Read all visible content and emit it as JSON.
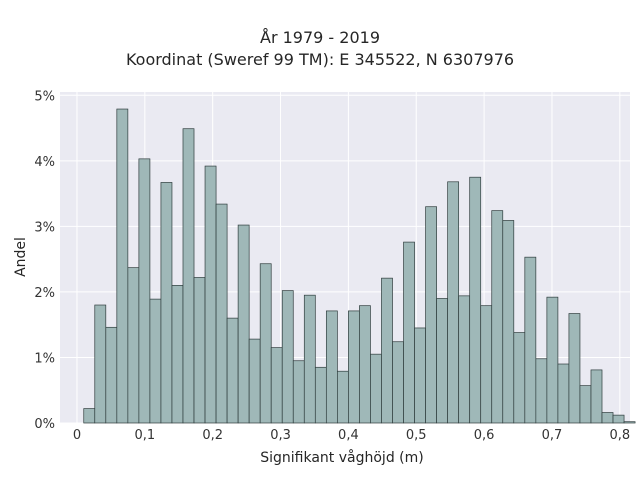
{
  "chart_data": {
    "type": "bar",
    "title": "År 1979 - 2019",
    "subtitle": "Koordinat (Sweref 99 TM): E 345522, N 6307976",
    "xlabel": "Signifikant våghöjd (m)",
    "ylabel": "Andel",
    "bin_width": 0.01625,
    "bin_start": 0.01,
    "xlim": [
      -0.025,
      0.815
    ],
    "ylim": [
      0,
      5.05
    ],
    "x_ticks": [
      0,
      0.1,
      0.2,
      0.3,
      0.4,
      0.5,
      0.6,
      0.7,
      0.8
    ],
    "x_tick_labels": [
      "0",
      "0,1",
      "0,2",
      "0,3",
      "0,4",
      "0,5",
      "0,6",
      "0,7",
      "0,8"
    ],
    "y_ticks": [
      0,
      1,
      2,
      3,
      4,
      5
    ],
    "y_tick_labels": [
      "0%",
      "1%",
      "2%",
      "3%",
      "4%",
      "5%"
    ],
    "values": [
      0.22,
      1.8,
      1.46,
      4.79,
      2.37,
      4.03,
      1.89,
      3.67,
      2.1,
      4.49,
      2.22,
      3.92,
      3.34,
      1.6,
      3.02,
      1.28,
      2.43,
      1.15,
      2.02,
      0.95,
      1.95,
      0.85,
      1.71,
      0.79,
      1.71,
      1.79,
      1.05,
      2.21,
      1.24,
      2.76,
      1.45,
      3.3,
      1.9,
      3.68,
      1.94,
      3.75,
      1.79,
      3.24,
      3.09,
      1.38,
      2.53,
      0.98,
      1.92,
      0.9,
      1.67,
      0.57,
      0.81,
      0.16,
      0.12,
      0.02
    ],
    "grid": true,
    "colors": {
      "bar_fill": "#9fb8b8",
      "bar_edge": "#2f3d3d",
      "plot_bg": "#eaeaf2",
      "grid": "#ffffff"
    }
  }
}
